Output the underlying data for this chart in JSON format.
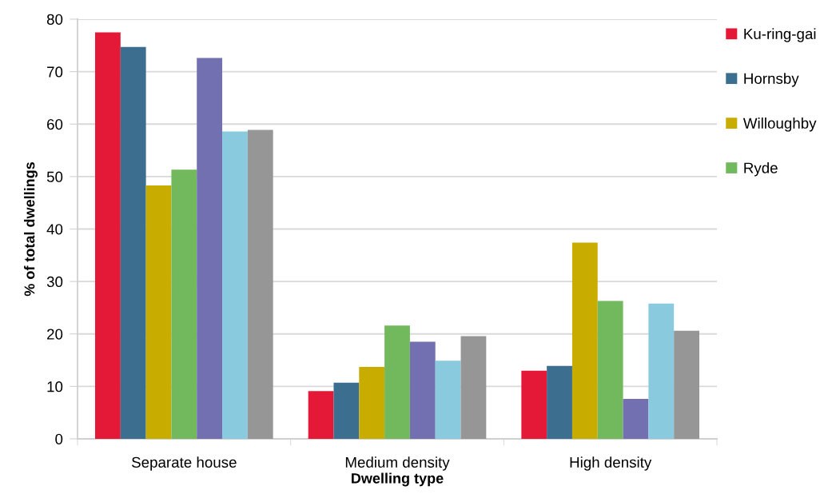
{
  "chart_data": {
    "type": "bar",
    "xlabel": "Dwelling type",
    "ylabel": "% of total dwellings",
    "categories": [
      "Separate house",
      "Medium density",
      "High density"
    ],
    "series": [
      {
        "name": "Ku-ring-gai",
        "color": "#e31937",
        "values": [
          77.5,
          9.1,
          13.0
        ]
      },
      {
        "name": "Hornsby",
        "color": "#3b6e8f",
        "values": [
          74.7,
          10.7,
          13.9
        ]
      },
      {
        "name": "Willoughby",
        "color": "#c9ac00",
        "values": [
          48.3,
          13.7,
          37.4
        ]
      },
      {
        "name": "Ryde",
        "color": "#72b85c",
        "values": [
          51.3,
          21.6,
          26.3
        ]
      },
      {
        "color": "#7270b0",
        "values": [
          72.6,
          18.5,
          7.6
        ]
      },
      {
        "color": "#8acadf",
        "values": [
          58.6,
          14.9,
          25.8
        ]
      },
      {
        "color": "#969696",
        "values": [
          58.9,
          19.6,
          20.6
        ]
      }
    ],
    "ylim": [
      0,
      80
    ],
    "yticks": [
      0,
      10,
      20,
      30,
      40,
      50,
      60,
      70,
      80
    ],
    "grid": "y",
    "legend": "top right"
  }
}
